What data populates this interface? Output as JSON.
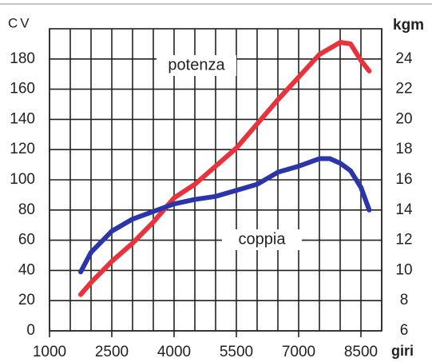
{
  "chart_data": {
    "type": "line",
    "y_label": "CV",
    "y2_label": "kgm",
    "x_label": "giri",
    "x": [
      1750,
      2000,
      2500,
      3000,
      3500,
      4000,
      4500,
      5000,
      5500,
      6000,
      6500,
      7000,
      7500,
      7750,
      8000,
      8250,
      8500,
      8700
    ],
    "series": [
      {
        "name": "potenza",
        "color": "#e8323c",
        "values": [
          24,
          32,
          46,
          58,
          72,
          88,
          97,
          109,
          121,
          137,
          153,
          168,
          183,
          187,
          191,
          190,
          179,
          172
        ]
      },
      {
        "name": "coppia",
        "color": "#2b34a8",
        "axis": "y2",
        "values": [
          9.9,
          11.2,
          12.6,
          13.4,
          13.9,
          14.4,
          14.7,
          14.9,
          15.3,
          15.7,
          16.5,
          16.9,
          17.4,
          17.4,
          17.1,
          16.6,
          15.5,
          14.0
        ]
      }
    ],
    "xlim": [
      1000,
      9000
    ],
    "xticks": [
      1000,
      2500,
      4000,
      5500,
      7000,
      8500
    ],
    "x_gridlines": [
      1000,
      1500,
      2000,
      2500,
      3000,
      3500,
      4000,
      4500,
      5000,
      5500,
      6000,
      6500,
      7000,
      7500,
      8000,
      8500,
      9000
    ],
    "ylim": [
      0,
      200
    ],
    "yticks": [
      0,
      20,
      40,
      60,
      80,
      100,
      120,
      140,
      160,
      180
    ],
    "y2lim": [
      6,
      26
    ],
    "y2ticks": [
      6,
      8,
      10,
      12,
      14,
      16,
      18,
      20,
      22,
      24
    ],
    "grid": true
  }
}
